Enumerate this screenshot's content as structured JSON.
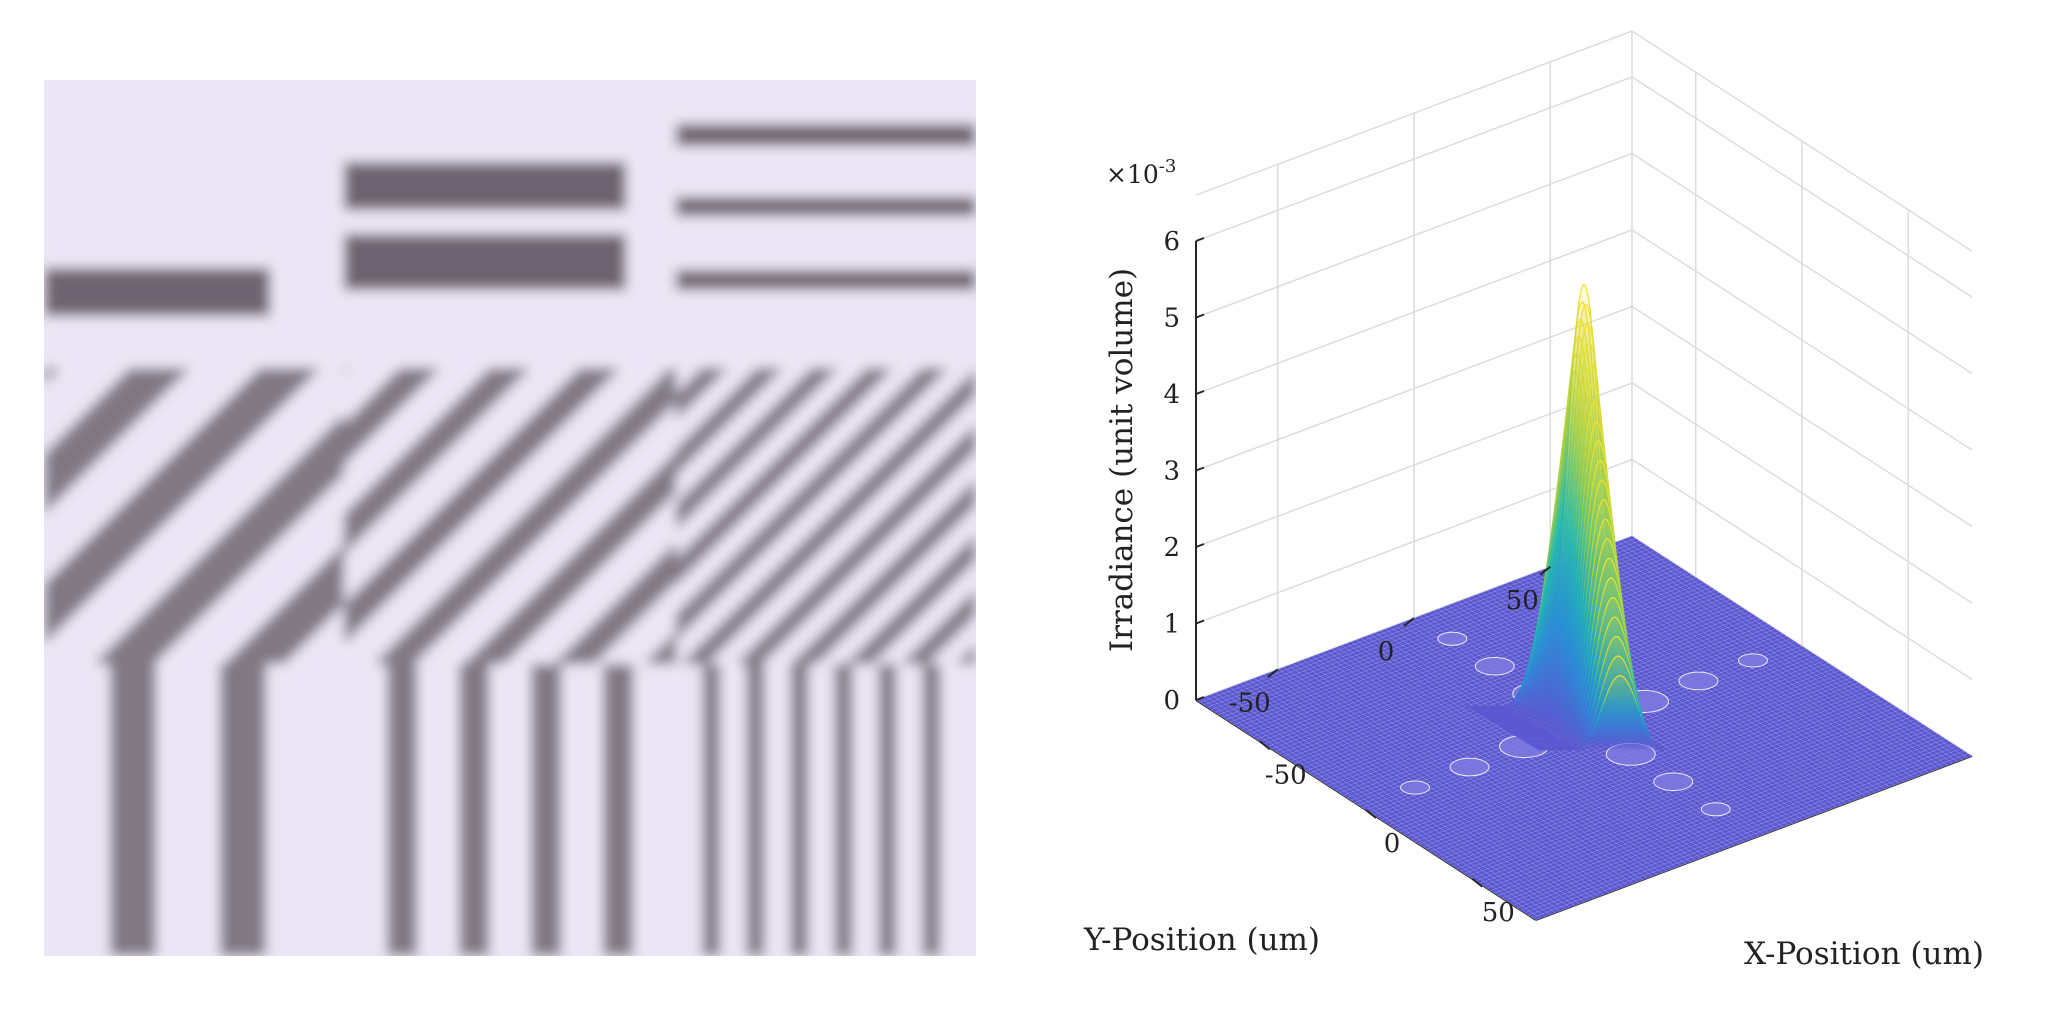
{
  "pattern_image": {
    "colors": {
      "light": "#ebe6f5",
      "dark": "#6e6470"
    }
  },
  "surface_plot": {
    "zlabel": "Irradiance (unit volume)",
    "xlabel": "X-Position (um)",
    "ylabel": "Y-Position (um)",
    "exponent_label": {
      "base": "×10",
      "exp": "-3"
    },
    "colors": {
      "surface": "#5b57d0",
      "mesh": "#ffffff",
      "grid": "#dcdcdc",
      "axis": "#262626"
    }
  },
  "chart_data": {
    "type": "surface",
    "x_ticks": [
      "-50",
      "0",
      "50"
    ],
    "y_ticks": [
      "-50",
      "0",
      "50"
    ],
    "z_ticks": [
      "0",
      "1",
      "2",
      "3",
      "4",
      "5",
      "6"
    ],
    "x_range": [
      -80,
      80
    ],
    "y_range": [
      -80,
      80
    ],
    "z_range": [
      0,
      0.006
    ],
    "peak": {
      "x": 0,
      "y": 0,
      "z": 0.0058
    },
    "grid": true,
    "colormap": "parula"
  }
}
